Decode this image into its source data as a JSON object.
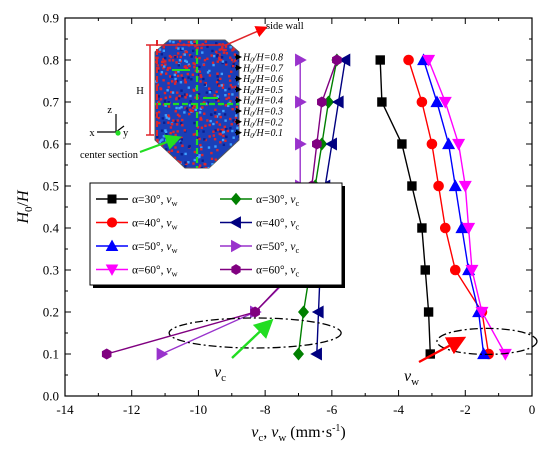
{
  "chart_data": {
    "type": "line",
    "title": "",
    "xlabel": "v_c, v_w (mm·s⁻¹)",
    "ylabel": "H0/H",
    "xlim": [
      -14,
      0
    ],
    "ylim": [
      0,
      0.9
    ],
    "x_ticks": [
      "-14",
      "-12",
      "-10",
      "-8",
      "-6",
      "-4",
      "-2",
      "0"
    ],
    "y_ticks": [
      "0.0",
      "0.1",
      "0.2",
      "0.3",
      "0.4",
      "0.5",
      "0.6",
      "0.7",
      "0.8",
      "0.9"
    ],
    "grid": false,
    "legend_position": "middle-left",
    "series": [
      {
        "name": "α=30°, vw",
        "color": "#000000",
        "marker": "square",
        "points": [
          [
            -3.05,
            0.1
          ],
          [
            -3.1,
            0.2
          ],
          [
            -3.2,
            0.3
          ],
          [
            -3.3,
            0.4
          ],
          [
            -3.6,
            0.5
          ],
          [
            -3.9,
            0.6
          ],
          [
            -4.5,
            0.7
          ],
          [
            -4.55,
            0.8
          ]
        ]
      },
      {
        "name": "α=40°, vw",
        "color": "#ff0000",
        "marker": "circle",
        "points": [
          [
            -1.3,
            0.1
          ],
          [
            -1.5,
            0.2
          ],
          [
            -2.3,
            0.3
          ],
          [
            -2.6,
            0.4
          ],
          [
            -2.8,
            0.5
          ],
          [
            -3.0,
            0.6
          ],
          [
            -3.3,
            0.7
          ],
          [
            -3.7,
            0.8
          ]
        ]
      },
      {
        "name": "α=50°, vw",
        "color": "#0000ff",
        "marker": "triangle-up",
        "points": [
          [
            -1.45,
            0.1
          ],
          [
            -1.6,
            0.2
          ],
          [
            -1.9,
            0.3
          ],
          [
            -2.1,
            0.4
          ],
          [
            -2.3,
            0.5
          ],
          [
            -2.5,
            0.6
          ],
          [
            -2.85,
            0.7
          ],
          [
            -3.25,
            0.8
          ]
        ]
      },
      {
        "name": "α=60°, vw",
        "color": "#ff00ff",
        "marker": "triangle-down",
        "points": [
          [
            -0.8,
            0.1
          ],
          [
            -1.5,
            0.2
          ],
          [
            -1.8,
            0.3
          ],
          [
            -1.9,
            0.4
          ],
          [
            -2.0,
            0.5
          ],
          [
            -2.2,
            0.6
          ],
          [
            -2.6,
            0.7
          ],
          [
            -3.1,
            0.8
          ]
        ]
      },
      {
        "name": "α=30°, vc",
        "color": "#008000",
        "marker": "diamond",
        "points": [
          [
            -7.0,
            0.1
          ],
          [
            -6.85,
            0.2
          ],
          [
            -6.65,
            0.3
          ],
          [
            -6.55,
            0.4
          ],
          [
            -6.5,
            0.5
          ],
          [
            -6.3,
            0.6
          ],
          [
            -6.1,
            0.7
          ],
          [
            -5.85,
            0.8
          ]
        ]
      },
      {
        "name": "α=40°, vc",
        "color": "#000080",
        "marker": "triangle-left",
        "points": [
          [
            -6.45,
            0.1
          ],
          [
            -6.4,
            0.2
          ],
          [
            -6.35,
            0.3
          ],
          [
            -6.3,
            0.4
          ],
          [
            -6.2,
            0.5
          ],
          [
            -6.0,
            0.6
          ],
          [
            -5.8,
            0.7
          ],
          [
            -5.6,
            0.8
          ]
        ]
      },
      {
        "name": "α=50°, vc",
        "color": "#9932cc",
        "marker": "triangle-right",
        "points": [
          [
            -11.1,
            0.1
          ],
          [
            -8.3,
            0.2
          ],
          [
            -7.05,
            0.3
          ],
          [
            -6.95,
            0.4
          ],
          [
            -6.95,
            0.5
          ],
          [
            -6.95,
            0.6
          ],
          [
            -6.95,
            0.7
          ],
          [
            -6.95,
            0.8
          ]
        ]
      },
      {
        "name": "α=60°, vc",
        "color": "#800080",
        "marker": "hexagon",
        "points": [
          [
            -12.75,
            0.1
          ],
          [
            -8.3,
            0.2
          ],
          [
            -7.1,
            0.3
          ],
          [
            -6.7,
            0.4
          ],
          [
            -6.6,
            0.5
          ],
          [
            -6.45,
            0.6
          ],
          [
            -6.3,
            0.7
          ],
          [
            -5.85,
            0.8
          ]
        ]
      }
    ],
    "annotations": [
      {
        "id": "vc-label",
        "text": "vc",
        "sub": "c",
        "color": "#00cc00"
      },
      {
        "id": "vw-label",
        "text": "vw",
        "sub": "w",
        "color": "#ff0000"
      }
    ],
    "inset": {
      "labels": [
        "side wall",
        "H",
        "center section",
        "z",
        "x",
        "y"
      ],
      "height_labels": [
        "H0/H=0.8",
        "H0/H=0.7",
        "H0/H=0.6",
        "H0/H=0.5",
        "H0/H=0.4",
        "H0/H=0.3",
        "H0/H=0.2",
        "H0/H=0.1"
      ]
    }
  }
}
